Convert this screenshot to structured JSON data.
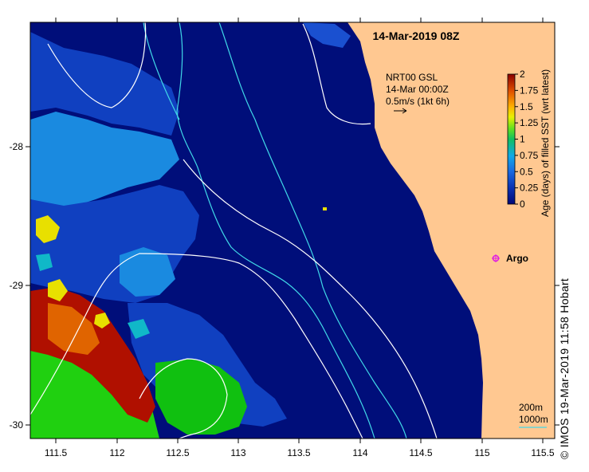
{
  "title": "14-Mar-2019 08Z",
  "current_info": {
    "line1": "NRT00 GSL",
    "line2": "14-Mar 00:00Z",
    "line3": "0.5m/s (1kt 6h)"
  },
  "colorbar": {
    "label": "Age (days) of filled SST (wrt latest)",
    "ticks": [
      "2",
      "1.75",
      "1.5",
      "1.25",
      "1",
      "0.75",
      "0.5",
      "0.25",
      "0"
    ],
    "colors": [
      "#8b0000",
      "#c83200",
      "#e06400",
      "#ffd000",
      "#c8f000",
      "#10c010",
      "#00b8c8",
      "#1890e8",
      "#1040c0",
      "#000878"
    ]
  },
  "argo": {
    "label": "Argo",
    "color": "#e020e0"
  },
  "contours_legend": {
    "c200": "200m",
    "c1000": "1000m"
  },
  "axes": {
    "x_ticks": [
      "111.5",
      "112",
      "112.5",
      "113",
      "113.5",
      "114",
      "114.5",
      "115",
      "115.5"
    ],
    "y_ticks": [
      "-28",
      "-29",
      "-30"
    ]
  },
  "credit": "© IMOS 19-Mar-2019 11:58 Hobart",
  "colors": {
    "ocean": "#000e7a",
    "land": "#ffc891",
    "contour_200": "#40d8e8",
    "contour_1000": "#ffffff"
  }
}
